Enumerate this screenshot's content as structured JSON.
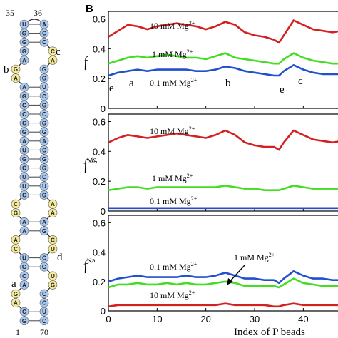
{
  "panel_a": {
    "top_labels": [
      "35",
      "36"
    ],
    "bottom_labels": [
      "1",
      "70"
    ],
    "loop_labels": [
      "b",
      "c",
      "a",
      "d"
    ],
    "strand_left": [
      "U",
      "G",
      "G",
      "G",
      "A",
      "G",
      "A",
      "A",
      "G",
      "C",
      "C",
      "C",
      "G",
      "A",
      "U",
      "G",
      "C",
      "U",
      "U",
      "C",
      "C",
      "G",
      "A",
      "A",
      "A",
      "C",
      "U",
      "G",
      "C",
      "A",
      "G",
      "A",
      "C",
      "G"
    ],
    "strand_right": [
      "A",
      "C",
      "C",
      "C",
      "A",
      "G",
      "G",
      "U",
      "C",
      "G",
      "C",
      "G",
      "G",
      "A",
      "C",
      "G",
      "G",
      "C",
      "U",
      "G",
      "A",
      "A",
      "A",
      "G",
      "C",
      "U",
      "C",
      "G",
      "U",
      "G",
      "C",
      "C",
      "U",
      "C"
    ],
    "colors": {
      "paired": "#a9c6ee",
      "unpaired": "#f5ea98",
      "outline": "#555555"
    }
  },
  "panel_b": {
    "letter": "B",
    "xlabel": "Index of P beads",
    "xticks": [
      "0",
      "10",
      "20",
      "30",
      "40"
    ],
    "subplots": [
      {
        "ylabel_main": "f",
        "ylabel_sup": "",
        "yticks": [
          "0",
          "0.2",
          "0.4",
          "0.6"
        ],
        "labels": {
          "high": "10 mM Mg",
          "mid": "1 mM Mg",
          "low": "0.1 mM Mg",
          "charge": "2+"
        },
        "letters": [
          "e",
          "a",
          "b",
          "e",
          "c"
        ]
      },
      {
        "ylabel_main": "f",
        "ylabel_sup": "Mg",
        "yticks": [
          "0",
          "0.2",
          "0.4",
          "0.6"
        ],
        "labels": {
          "high": "10 mM Mg",
          "mid": "1 mM Mg",
          "low": "0.1 mM Mg",
          "charge": "2+"
        }
      },
      {
        "ylabel_main": "f",
        "ylabel_sup": "Na",
        "yticks": [
          "0",
          "0.2",
          "0.4",
          "0.6"
        ],
        "labels": {
          "high": "10 mM Mg",
          "mid": "1 mM Mg",
          "low": "0.1 mM Mg",
          "charge": "2+"
        }
      }
    ]
  },
  "chart_data": [
    {
      "type": "line",
      "ylabel": "f",
      "xlabel": "Index of P beads",
      "ylim": [
        0,
        0.65
      ],
      "series": [
        {
          "name": "10 mM Mg2+",
          "color": "#d42020",
          "x": [
            0,
            2,
            4,
            6,
            8,
            10,
            12,
            14,
            16,
            18,
            20,
            22,
            24,
            26,
            28,
            30,
            32,
            34,
            35,
            36,
            38,
            40,
            42,
            44,
            46,
            48
          ],
          "y": [
            0.48,
            0.52,
            0.56,
            0.55,
            0.53,
            0.55,
            0.56,
            0.57,
            0.56,
            0.55,
            0.53,
            0.55,
            0.58,
            0.56,
            0.51,
            0.49,
            0.48,
            0.46,
            0.44,
            0.49,
            0.59,
            0.56,
            0.53,
            0.52,
            0.51,
            0.52
          ]
        },
        {
          "name": "1 mM Mg2+",
          "color": "#44dd22",
          "x": [
            0,
            2,
            4,
            6,
            8,
            10,
            12,
            14,
            16,
            18,
            20,
            22,
            24,
            26,
            28,
            30,
            32,
            34,
            35,
            36,
            38,
            40,
            42,
            44,
            46,
            48
          ],
          "y": [
            0.3,
            0.32,
            0.34,
            0.35,
            0.34,
            0.35,
            0.36,
            0.35,
            0.34,
            0.34,
            0.33,
            0.35,
            0.37,
            0.34,
            0.33,
            0.32,
            0.31,
            0.3,
            0.3,
            0.33,
            0.37,
            0.34,
            0.32,
            0.31,
            0.3,
            0.3
          ]
        },
        {
          "name": "0.1 mM Mg2+",
          "color": "#2050d0",
          "x": [
            0,
            2,
            4,
            6,
            8,
            10,
            12,
            14,
            16,
            18,
            20,
            22,
            24,
            26,
            28,
            30,
            32,
            34,
            35,
            36,
            38,
            40,
            42,
            44,
            46,
            48
          ],
          "y": [
            0.22,
            0.24,
            0.25,
            0.26,
            0.25,
            0.26,
            0.26,
            0.26,
            0.26,
            0.25,
            0.25,
            0.26,
            0.28,
            0.27,
            0.25,
            0.24,
            0.23,
            0.22,
            0.22,
            0.25,
            0.29,
            0.26,
            0.24,
            0.23,
            0.23,
            0.23
          ]
        }
      ]
    },
    {
      "type": "line",
      "ylabel": "fMg",
      "xlabel": "Index of P beads",
      "ylim": [
        0,
        0.65
      ],
      "series": [
        {
          "name": "10 mM Mg2+",
          "color": "#d42020",
          "x": [
            0,
            2,
            4,
            6,
            8,
            10,
            12,
            14,
            16,
            18,
            20,
            22,
            24,
            26,
            28,
            30,
            32,
            34,
            35,
            36,
            38,
            40,
            42,
            44,
            46,
            48
          ],
          "y": [
            0.46,
            0.49,
            0.51,
            0.5,
            0.49,
            0.5,
            0.51,
            0.52,
            0.51,
            0.5,
            0.49,
            0.51,
            0.54,
            0.51,
            0.46,
            0.44,
            0.43,
            0.43,
            0.41,
            0.46,
            0.54,
            0.51,
            0.48,
            0.47,
            0.46,
            0.47
          ]
        },
        {
          "name": "1 mM Mg2+",
          "color": "#44dd22",
          "x": [
            0,
            2,
            4,
            6,
            8,
            10,
            12,
            14,
            16,
            18,
            20,
            22,
            24,
            26,
            28,
            30,
            32,
            34,
            35,
            36,
            38,
            40,
            42,
            44,
            46,
            48
          ],
          "y": [
            0.14,
            0.15,
            0.16,
            0.16,
            0.15,
            0.16,
            0.16,
            0.16,
            0.16,
            0.16,
            0.16,
            0.16,
            0.17,
            0.16,
            0.15,
            0.15,
            0.14,
            0.14,
            0.14,
            0.15,
            0.17,
            0.16,
            0.15,
            0.15,
            0.15,
            0.15
          ]
        },
        {
          "name": "0.1 mM Mg2+",
          "color": "#2050d0",
          "x": [
            0,
            2,
            4,
            6,
            8,
            10,
            12,
            14,
            16,
            18,
            20,
            22,
            24,
            26,
            28,
            30,
            32,
            34,
            35,
            36,
            38,
            40,
            42,
            44,
            46,
            48
          ],
          "y": [
            0.02,
            0.02,
            0.02,
            0.02,
            0.02,
            0.02,
            0.02,
            0.02,
            0.02,
            0.02,
            0.02,
            0.02,
            0.02,
            0.02,
            0.02,
            0.02,
            0.02,
            0.02,
            0.02,
            0.02,
            0.02,
            0.02,
            0.02,
            0.02,
            0.02,
            0.02
          ]
        }
      ]
    },
    {
      "type": "line",
      "ylabel": "fNa",
      "xlabel": "Index of P beads",
      "ylim": [
        0,
        0.65
      ],
      "series": [
        {
          "name": "0.1 mM Mg2+",
          "color": "#2050d0",
          "x": [
            0,
            2,
            4,
            6,
            8,
            10,
            12,
            14,
            16,
            18,
            20,
            22,
            24,
            26,
            28,
            30,
            32,
            34,
            35,
            36,
            38,
            40,
            42,
            44,
            46,
            48
          ],
          "y": [
            0.2,
            0.22,
            0.23,
            0.24,
            0.23,
            0.23,
            0.23,
            0.23,
            0.24,
            0.23,
            0.23,
            0.24,
            0.26,
            0.24,
            0.22,
            0.22,
            0.21,
            0.21,
            0.19,
            0.22,
            0.27,
            0.24,
            0.22,
            0.22,
            0.21,
            0.21
          ]
        },
        {
          "name": "1 mM Mg2+",
          "color": "#44dd22",
          "x": [
            0,
            2,
            4,
            6,
            8,
            10,
            12,
            14,
            16,
            18,
            20,
            22,
            24,
            26,
            28,
            30,
            32,
            34,
            35,
            36,
            38,
            40,
            42,
            44,
            46,
            48
          ],
          "y": [
            0.16,
            0.18,
            0.18,
            0.19,
            0.18,
            0.18,
            0.19,
            0.18,
            0.19,
            0.18,
            0.18,
            0.19,
            0.2,
            0.19,
            0.17,
            0.17,
            0.17,
            0.17,
            0.16,
            0.18,
            0.22,
            0.19,
            0.18,
            0.17,
            0.17,
            0.17
          ]
        },
        {
          "name": "10 mM Mg2+",
          "color": "#d42020",
          "x": [
            0,
            2,
            4,
            6,
            8,
            10,
            12,
            14,
            16,
            18,
            20,
            22,
            24,
            26,
            28,
            30,
            32,
            34,
            35,
            36,
            38,
            40,
            42,
            44,
            46,
            48
          ],
          "y": [
            0.03,
            0.04,
            0.04,
            0.04,
            0.04,
            0.04,
            0.04,
            0.04,
            0.04,
            0.04,
            0.04,
            0.04,
            0.05,
            0.04,
            0.04,
            0.04,
            0.04,
            0.03,
            0.03,
            0.04,
            0.05,
            0.04,
            0.04,
            0.04,
            0.04,
            0.04
          ]
        }
      ]
    }
  ]
}
